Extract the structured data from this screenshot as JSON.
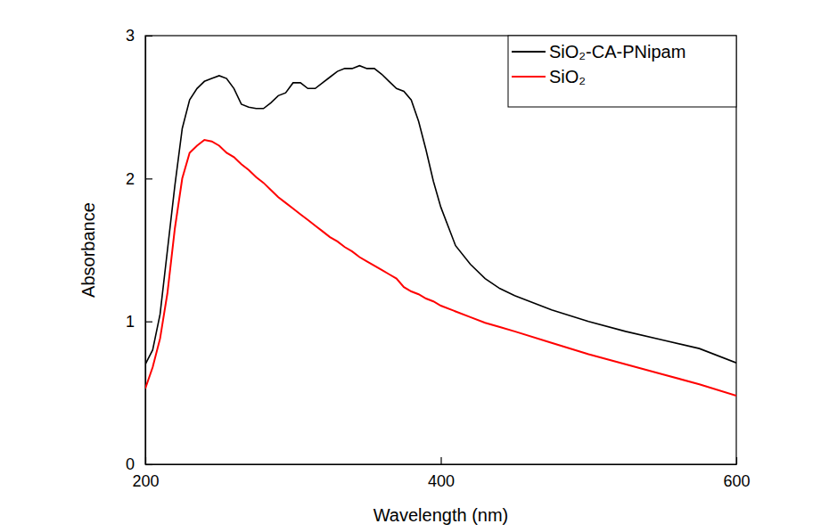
{
  "chart_data": {
    "type": "line",
    "x_label": "Wavelength (nm)",
    "y_label": "Absorbance",
    "x": [
      200,
      205,
      210,
      215,
      220,
      225,
      230,
      235,
      240,
      245,
      250,
      255,
      260,
      265,
      270,
      275,
      280,
      285,
      290,
      295,
      300,
      305,
      310,
      315,
      320,
      325,
      330,
      335,
      340,
      345,
      350,
      355,
      360,
      365,
      370,
      375,
      380,
      385,
      390,
      395,
      400,
      410,
      420,
      430,
      440,
      450,
      475,
      500,
      525,
      550,
      575,
      600
    ],
    "series": [
      {
        "name": "SiO₂-CA-PNipam",
        "color": "#000000",
        "values": [
          0.7,
          0.8,
          1.05,
          1.5,
          1.95,
          2.35,
          2.55,
          2.63,
          2.68,
          2.7,
          2.72,
          2.7,
          2.63,
          2.52,
          2.5,
          2.49,
          2.49,
          2.53,
          2.58,
          2.6,
          2.67,
          2.67,
          2.63,
          2.63,
          2.67,
          2.71,
          2.75,
          2.77,
          2.77,
          2.79,
          2.77,
          2.77,
          2.73,
          2.68,
          2.63,
          2.61,
          2.55,
          2.4,
          2.2,
          1.98,
          1.8,
          1.53,
          1.4,
          1.3,
          1.23,
          1.18,
          1.08,
          1.0,
          0.93,
          0.87,
          0.81,
          0.71
        ]
      },
      {
        "name": "SiO₂",
        "color": "#ff0000",
        "values": [
          0.53,
          0.68,
          0.88,
          1.2,
          1.65,
          2.0,
          2.18,
          2.23,
          2.27,
          2.26,
          2.23,
          2.18,
          2.15,
          2.1,
          2.06,
          2.01,
          1.97,
          1.92,
          1.87,
          1.83,
          1.79,
          1.75,
          1.71,
          1.67,
          1.63,
          1.59,
          1.56,
          1.52,
          1.49,
          1.45,
          1.42,
          1.39,
          1.36,
          1.33,
          1.3,
          1.24,
          1.21,
          1.19,
          1.16,
          1.14,
          1.11,
          1.07,
          1.03,
          0.99,
          0.96,
          0.93,
          0.85,
          0.77,
          0.7,
          0.63,
          0.56,
          0.48
        ]
      }
    ],
    "xlim": [
      200,
      600
    ],
    "xticks": [
      200,
      400,
      600
    ],
    "ylim": [
      0,
      3
    ],
    "yticks": [
      0,
      1,
      2,
      3
    ],
    "legend": "upper right",
    "grid": false
  }
}
